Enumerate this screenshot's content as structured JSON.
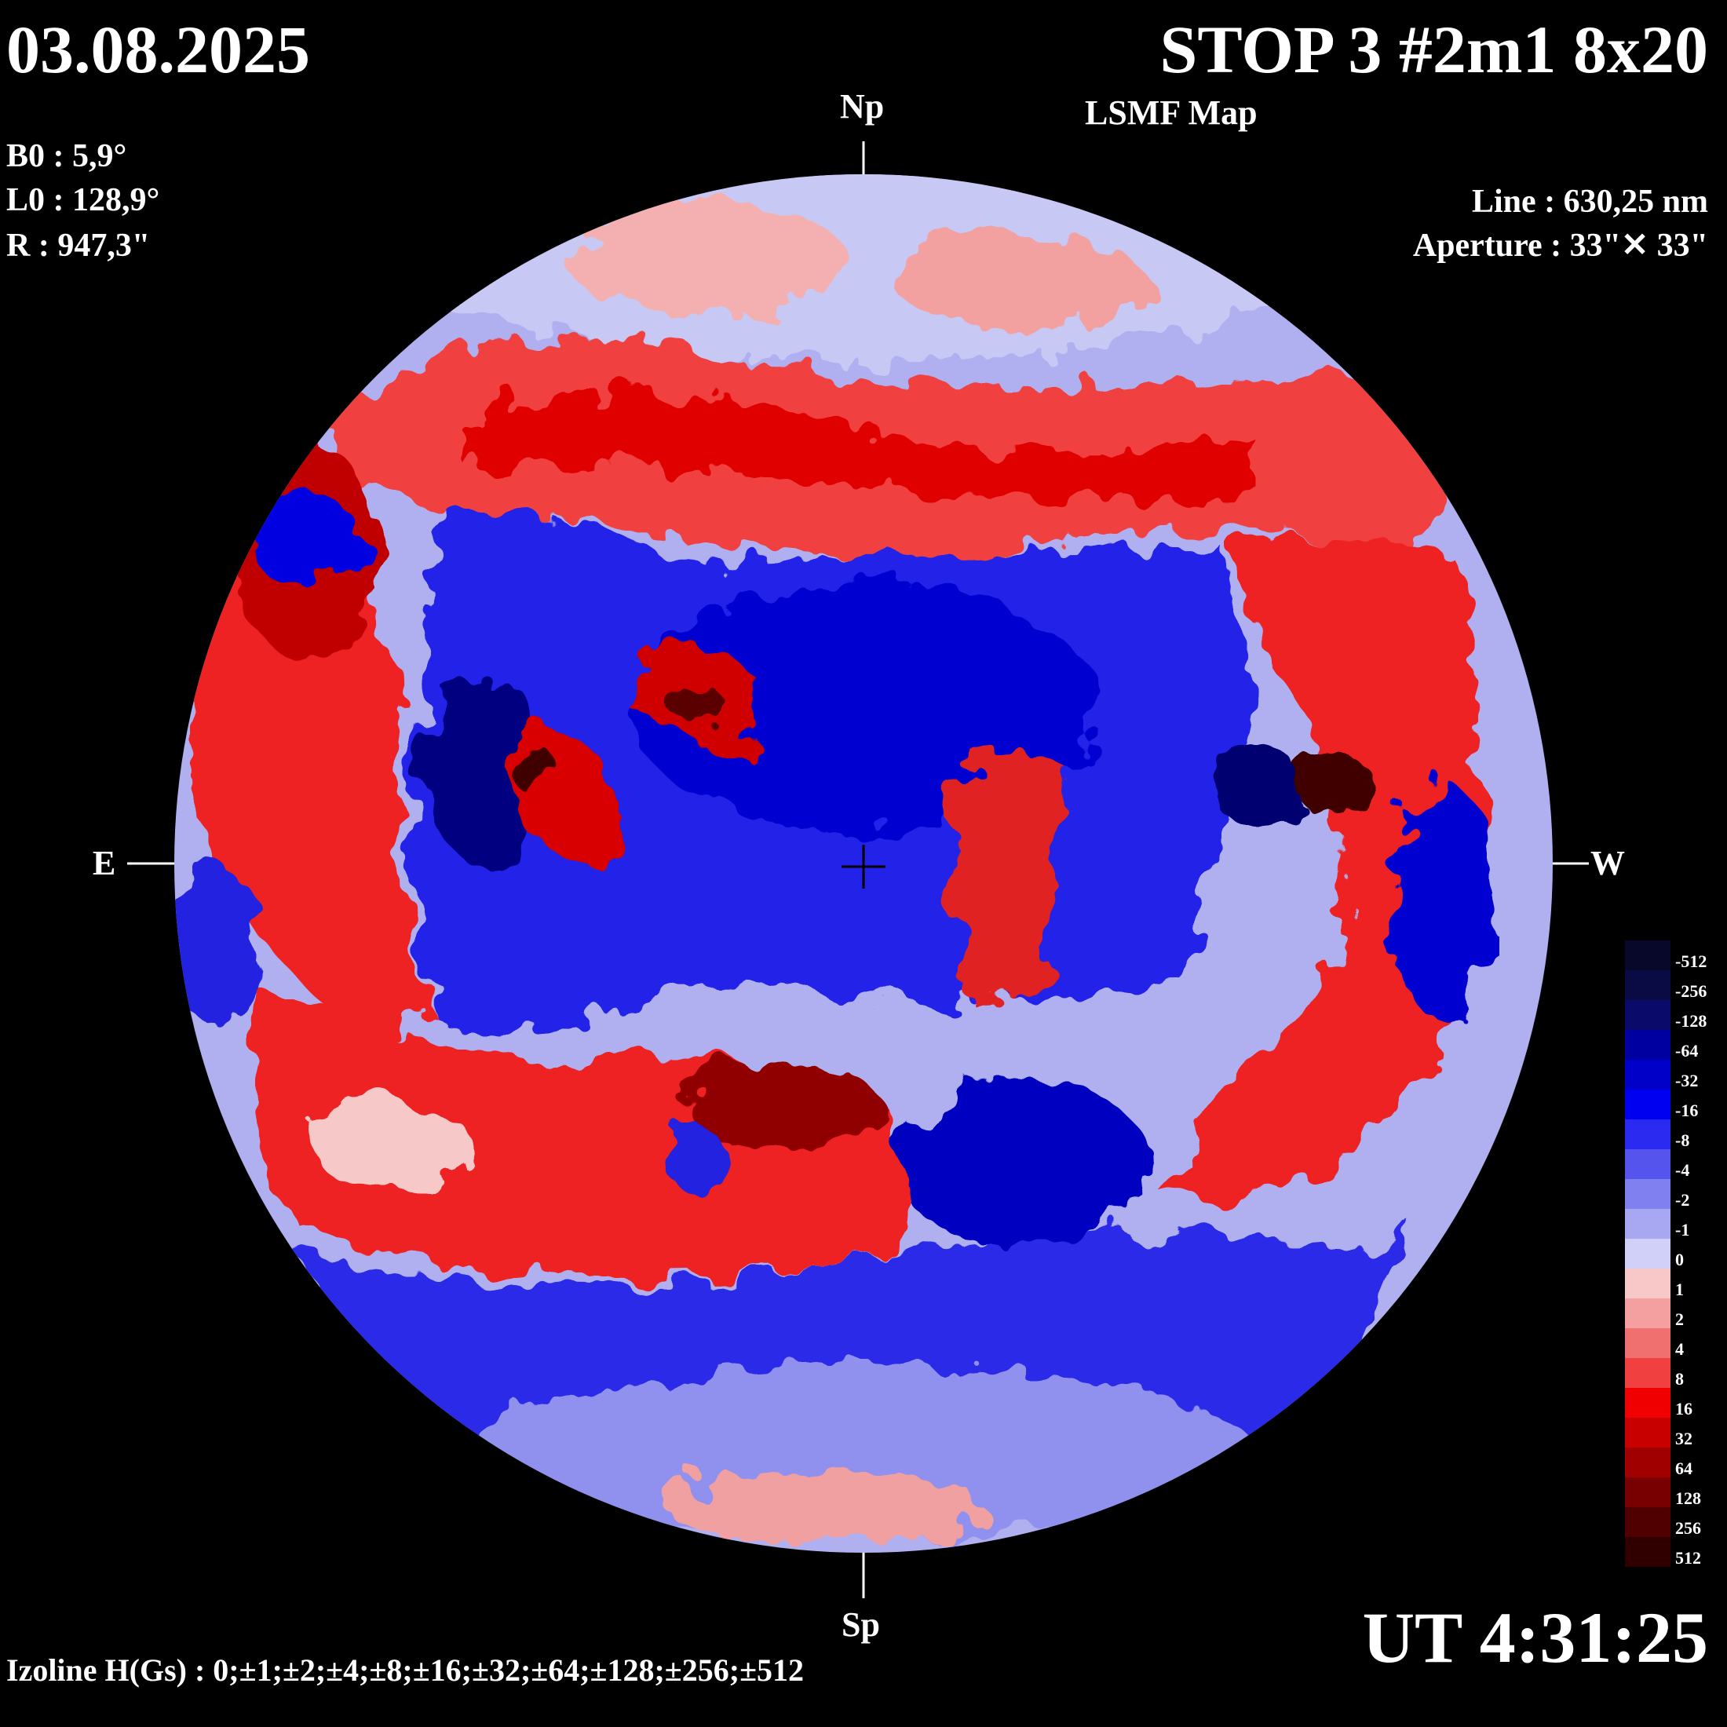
{
  "header": {
    "date": "03.08.2025",
    "title": "STOP 3 #2m1 8x20",
    "subtitle": "LSMF  Map"
  },
  "parameters": {
    "b0": "B0 : 5,9°",
    "l0": "L0 : 128,9°",
    "r": "R  : 947,3\""
  },
  "spectral": {
    "line": "Line :  630,25 nm",
    "aperture": "Aperture : 33\"✕ 33\""
  },
  "directions": {
    "north": "Np",
    "south": "Sp",
    "east": "E",
    "west": "W"
  },
  "time": "UT 4:31:25",
  "izoline": "Izoline H(Gs) : 0;±1;±2;±4;±8;±16;±32;±64;±128;±256;±512",
  "colors": {
    "background": "#000000",
    "positive": "#e00000",
    "negative": "#0000e0",
    "zero_contour": "#ffffff"
  },
  "legend": {
    "levels": [
      "-512",
      "-256",
      "-128",
      "-64",
      "-32",
      "-16",
      "-8",
      "-4",
      "-2",
      "-1",
      "0",
      "1",
      "2",
      "4",
      "8",
      "16",
      "32",
      "64",
      "128",
      "256",
      "512"
    ],
    "colors": [
      "#08082a",
      "#0a0a45",
      "#0a0a6a",
      "#0000a0",
      "#0000c8",
      "#0000f0",
      "#2a2af0",
      "#5555ee",
      "#8080f0",
      "#a8a8f2",
      "#d0d0f8",
      "#f8c8c8",
      "#f4a0a0",
      "#f07070",
      "#f04040",
      "#f00000",
      "#c80000",
      "#a00000",
      "#780000",
      "#500000",
      "#300000"
    ]
  }
}
